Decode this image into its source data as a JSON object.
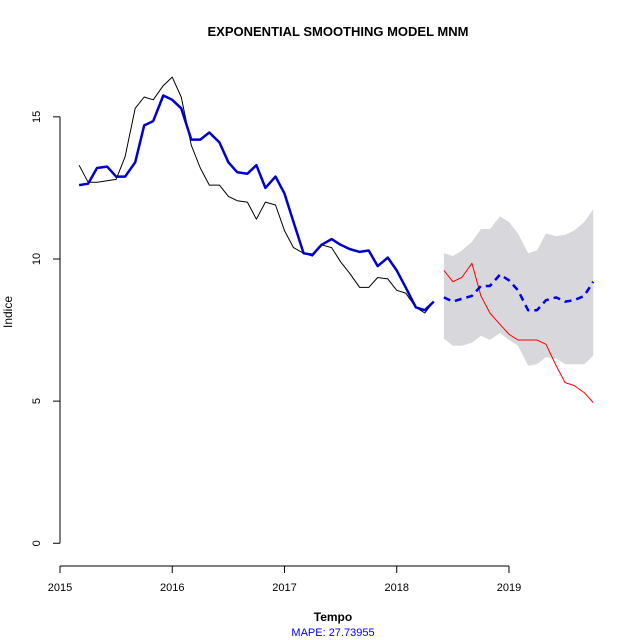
{
  "chart_data": {
    "type": "line",
    "title": "EXPONENTIAL SMOOTHING MODEL MNM",
    "xlabel": "Tempo",
    "ylabel": "Indice",
    "footer": "MAPE:  27.73955",
    "xlim": [
      2015.0,
      2019.9
    ],
    "ylim": [
      -0.8,
      17.0
    ],
    "xticks": [
      2015,
      2016,
      2017,
      2018,
      2019
    ],
    "xtick_labels": [
      "2015",
      "2016",
      "2017",
      "2018",
      "2019"
    ],
    "yticks": [
      0,
      5,
      10,
      15
    ],
    "ytick_labels": [
      "0",
      "5",
      "10",
      "15"
    ],
    "grid": false,
    "colors": {
      "observed": "#000000",
      "fitted": "#0000cc",
      "actual_future": "#ff0000",
      "forecast": "#0000ee",
      "interval": "#d8d8dc",
      "footer": "#0000ff"
    },
    "series": [
      {
        "key": "observed",
        "x": [
          2015.17,
          2015.25,
          2015.33,
          2015.42,
          2015.5,
          2015.58,
          2015.67,
          2015.75,
          2015.83,
          2015.92,
          2016.0,
          2016.08,
          2016.17,
          2016.25,
          2016.33,
          2016.42,
          2016.5,
          2016.58,
          2016.67,
          2016.75,
          2016.83,
          2016.92,
          2017.0,
          2017.08,
          2017.17,
          2017.25,
          2017.33,
          2017.42,
          2017.5,
          2017.58,
          2017.67,
          2017.75,
          2017.83,
          2017.92,
          2018.0,
          2018.08,
          2018.17,
          2018.25,
          2018.33
        ],
        "values": [
          13.3,
          12.7,
          12.7,
          12.75,
          12.8,
          13.6,
          15.3,
          15.7,
          15.6,
          16.1,
          16.4,
          15.7,
          14.0,
          13.2,
          12.6,
          12.6,
          12.2,
          12.05,
          12.0,
          11.4,
          12.0,
          11.9,
          11.0,
          10.4,
          10.2,
          10.1,
          10.5,
          10.4,
          9.9,
          9.5,
          9.0,
          9.0,
          9.35,
          9.3,
          8.9,
          8.8,
          8.3,
          8.1,
          8.5
        ]
      },
      {
        "key": "fitted",
        "x": [
          2015.17,
          2015.25,
          2015.33,
          2015.42,
          2015.5,
          2015.58,
          2015.67,
          2015.75,
          2015.83,
          2015.92,
          2016.0,
          2016.08,
          2016.17,
          2016.25,
          2016.33,
          2016.42,
          2016.5,
          2016.58,
          2016.67,
          2016.75,
          2016.83,
          2016.92,
          2017.0,
          2017.08,
          2017.17,
          2017.25,
          2017.33,
          2017.42,
          2017.5,
          2017.58,
          2017.67,
          2017.75,
          2017.83,
          2017.92,
          2018.0,
          2018.08,
          2018.17,
          2018.25,
          2018.33
        ],
        "values": [
          12.6,
          12.65,
          13.2,
          13.25,
          12.9,
          12.9,
          13.4,
          14.7,
          14.85,
          15.75,
          15.6,
          15.3,
          14.2,
          14.2,
          14.45,
          14.1,
          13.4,
          13.05,
          13.0,
          13.3,
          12.5,
          12.9,
          12.3,
          11.3,
          10.2,
          10.15,
          10.5,
          10.7,
          10.5,
          10.35,
          10.25,
          10.3,
          9.75,
          10.05,
          9.6,
          9.0,
          8.3,
          8.2,
          8.5
        ]
      },
      {
        "key": "actual_future",
        "x": [
          2018.42,
          2018.5,
          2018.58,
          2018.67,
          2018.75,
          2018.83,
          2018.92,
          2019.0,
          2019.08,
          2019.17,
          2019.25,
          2019.33,
          2019.42,
          2019.5,
          2019.58,
          2019.67,
          2019.75
        ],
        "values": [
          9.6,
          9.2,
          9.35,
          9.85,
          8.7,
          8.1,
          7.7,
          7.35,
          7.15,
          7.15,
          7.15,
          7.0,
          6.25,
          5.65,
          5.55,
          5.3,
          4.95
        ]
      },
      {
        "key": "forecast",
        "x": [
          2018.42,
          2018.5,
          2018.58,
          2018.67,
          2018.75,
          2018.83,
          2018.92,
          2019.0,
          2019.08,
          2019.17,
          2019.25,
          2019.33,
          2019.42,
          2019.5,
          2019.58,
          2019.67,
          2019.75
        ],
        "values": [
          8.65,
          8.5,
          8.6,
          8.7,
          9.05,
          9.05,
          9.45,
          9.25,
          8.9,
          8.2,
          8.2,
          8.55,
          8.65,
          8.5,
          8.55,
          8.7,
          9.2
        ]
      }
    ],
    "interval": {
      "key": "interval",
      "x": [
        2018.42,
        2018.5,
        2018.58,
        2018.67,
        2018.75,
        2018.83,
        2018.92,
        2019.0,
        2019.08,
        2019.17,
        2019.25,
        2019.33,
        2019.42,
        2019.5,
        2019.58,
        2019.67,
        2019.75
      ],
      "upper": [
        10.2,
        10.1,
        10.3,
        10.6,
        11.05,
        11.05,
        11.5,
        11.3,
        10.9,
        10.2,
        10.3,
        10.9,
        10.8,
        10.85,
        11.0,
        11.3,
        11.75
      ],
      "lower": [
        7.2,
        6.95,
        6.95,
        7.05,
        7.3,
        7.15,
        7.4,
        7.15,
        6.95,
        6.25,
        6.3,
        6.55,
        6.5,
        6.3,
        6.3,
        6.3,
        6.6
      ]
    }
  }
}
